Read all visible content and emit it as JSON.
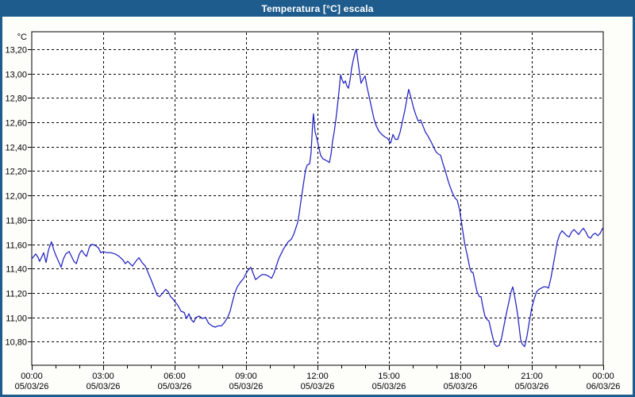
{
  "window": {
    "title": "Temperatura [°C] escala"
  },
  "colors": {
    "titlebar_bg": "#1E5C8E",
    "window_border": "#1E5C8E",
    "content_bg": "#FDFDFA",
    "plot_bg": "#FFFFFF",
    "grid": "#000000",
    "axis": "#000000",
    "line": "#2222C2",
    "title_text": "#FFFFFF",
    "label_text": "#000000"
  },
  "chart_data": {
    "type": "line",
    "title": "Temperatura [°C] escala",
    "unit_label": "°C",
    "legend_position": "none",
    "grid": "dashed",
    "x_axis": {
      "xlim_hours": [
        0,
        24
      ],
      "minor_tick_every_hours": 1,
      "major_tick_every_hours": 3,
      "ticks": [
        {
          "hour": 0,
          "time": "00:00",
          "date": "05/03/26"
        },
        {
          "hour": 3,
          "time": "03:00",
          "date": "05/03/26"
        },
        {
          "hour": 6,
          "time": "06:00",
          "date": "05/03/26"
        },
        {
          "hour": 9,
          "time": "09:00",
          "date": "05/03/26"
        },
        {
          "hour": 12,
          "time": "12:00",
          "date": "05/03/26"
        },
        {
          "hour": 15,
          "time": "15:00",
          "date": "05/03/26"
        },
        {
          "hour": 18,
          "time": "18:00",
          "date": "05/03/26"
        },
        {
          "hour": 21,
          "time": "21:00",
          "date": "05/03/26"
        },
        {
          "hour": 24,
          "time": "00:00",
          "date": "06/03/26"
        }
      ]
    },
    "y_axis": {
      "ylim": [
        10.6,
        13.34
      ],
      "tick_step": 0.2,
      "tick_values": [
        13.2,
        13.0,
        12.8,
        12.6,
        12.4,
        12.2,
        12.0,
        11.8,
        11.6,
        11.4,
        11.2,
        11.0,
        10.8
      ],
      "tick_labels": [
        "13,20",
        "13,00",
        "12,80",
        "12,60",
        "12,40",
        "12,20",
        "12,00",
        "11,80",
        "11,60",
        "11,40",
        "11,20",
        "11,00",
        "10,80"
      ]
    },
    "series": [
      {
        "name": "Temperatura",
        "unit": "°C",
        "points": [
          [
            0.0,
            11.48
          ],
          [
            0.17,
            11.52
          ],
          [
            0.27,
            11.49
          ],
          [
            0.33,
            11.46
          ],
          [
            0.43,
            11.5
          ],
          [
            0.5,
            11.53
          ],
          [
            0.6,
            11.45
          ],
          [
            0.7,
            11.55
          ],
          [
            0.77,
            11.59
          ],
          [
            0.83,
            11.62
          ],
          [
            0.93,
            11.55
          ],
          [
            1.03,
            11.5
          ],
          [
            1.17,
            11.44
          ],
          [
            1.23,
            11.41
          ],
          [
            1.33,
            11.48
          ],
          [
            1.43,
            11.52
          ],
          [
            1.57,
            11.54
          ],
          [
            1.67,
            11.5
          ],
          [
            1.77,
            11.46
          ],
          [
            1.87,
            11.44
          ],
          [
            2.0,
            11.52
          ],
          [
            2.1,
            11.55
          ],
          [
            2.2,
            11.52
          ],
          [
            2.3,
            11.5
          ],
          [
            2.43,
            11.58
          ],
          [
            2.53,
            11.6
          ],
          [
            2.67,
            11.59
          ],
          [
            2.8,
            11.57
          ],
          [
            2.9,
            11.53
          ],
          [
            3.0,
            11.54
          ],
          [
            3.17,
            11.53
          ],
          [
            3.33,
            11.53
          ],
          [
            3.5,
            11.52
          ],
          [
            3.67,
            11.5
          ],
          [
            3.83,
            11.47
          ],
          [
            3.93,
            11.44
          ],
          [
            4.03,
            11.46
          ],
          [
            4.13,
            11.44
          ],
          [
            4.23,
            11.42
          ],
          [
            4.37,
            11.46
          ],
          [
            4.5,
            11.49
          ],
          [
            4.63,
            11.45
          ],
          [
            4.77,
            11.42
          ],
          [
            4.9,
            11.36
          ],
          [
            5.03,
            11.3
          ],
          [
            5.17,
            11.23
          ],
          [
            5.27,
            11.18
          ],
          [
            5.37,
            11.17
          ],
          [
            5.5,
            11.2
          ],
          [
            5.63,
            11.23
          ],
          [
            5.73,
            11.21
          ],
          [
            5.83,
            11.17
          ],
          [
            5.93,
            11.15
          ],
          [
            6.0,
            11.13
          ],
          [
            6.13,
            11.1
          ],
          [
            6.27,
            11.05
          ],
          [
            6.4,
            11.04
          ],
          [
            6.5,
            10.99
          ],
          [
            6.6,
            11.03
          ],
          [
            6.7,
            10.98
          ],
          [
            6.8,
            10.96
          ],
          [
            6.9,
            11.0
          ],
          [
            7.03,
            11.01
          ],
          [
            7.17,
            10.99
          ],
          [
            7.3,
            11.0
          ],
          [
            7.43,
            10.95
          ],
          [
            7.57,
            10.93
          ],
          [
            7.7,
            10.92
          ],
          [
            7.83,
            10.93
          ],
          [
            7.97,
            10.93
          ],
          [
            8.1,
            10.96
          ],
          [
            8.23,
            11.0
          ],
          [
            8.33,
            11.05
          ],
          [
            8.43,
            11.13
          ],
          [
            8.53,
            11.2
          ],
          [
            8.63,
            11.25
          ],
          [
            8.77,
            11.29
          ],
          [
            8.9,
            11.32
          ],
          [
            9.0,
            11.36
          ],
          [
            9.1,
            11.39
          ],
          [
            9.2,
            11.41
          ],
          [
            9.3,
            11.36
          ],
          [
            9.4,
            11.31
          ],
          [
            9.53,
            11.33
          ],
          [
            9.67,
            11.35
          ],
          [
            9.8,
            11.35
          ],
          [
            9.93,
            11.34
          ],
          [
            10.07,
            11.32
          ],
          [
            10.17,
            11.36
          ],
          [
            10.27,
            11.42
          ],
          [
            10.37,
            11.48
          ],
          [
            10.47,
            11.52
          ],
          [
            10.57,
            11.56
          ],
          [
            10.67,
            11.59
          ],
          [
            10.77,
            11.62
          ],
          [
            10.9,
            11.64
          ],
          [
            11.0,
            11.68
          ],
          [
            11.07,
            11.72
          ],
          [
            11.17,
            11.78
          ],
          [
            11.23,
            11.85
          ],
          [
            11.3,
            11.95
          ],
          [
            11.37,
            12.04
          ],
          [
            11.43,
            12.12
          ],
          [
            11.5,
            12.21
          ],
          [
            11.57,
            12.25
          ],
          [
            11.67,
            12.26
          ],
          [
            11.73,
            12.35
          ],
          [
            11.8,
            12.6
          ],
          [
            11.83,
            12.67
          ],
          [
            11.9,
            12.52
          ],
          [
            11.97,
            12.47
          ],
          [
            12.07,
            12.38
          ],
          [
            12.13,
            12.33
          ],
          [
            12.23,
            12.3
          ],
          [
            12.33,
            12.29
          ],
          [
            12.43,
            12.28
          ],
          [
            12.5,
            12.27
          ],
          [
            12.57,
            12.34
          ],
          [
            12.63,
            12.44
          ],
          [
            12.7,
            12.52
          ],
          [
            12.77,
            12.62
          ],
          [
            12.83,
            12.72
          ],
          [
            12.9,
            12.85
          ],
          [
            12.97,
            12.99
          ],
          [
            13.03,
            12.95
          ],
          [
            13.1,
            12.92
          ],
          [
            13.17,
            12.94
          ],
          [
            13.23,
            12.9
          ],
          [
            13.3,
            12.88
          ],
          [
            13.37,
            12.95
          ],
          [
            13.43,
            13.04
          ],
          [
            13.5,
            13.11
          ],
          [
            13.57,
            13.17
          ],
          [
            13.63,
            13.2
          ],
          [
            13.7,
            13.1
          ],
          [
            13.77,
            13.0
          ],
          [
            13.83,
            12.92
          ],
          [
            13.93,
            12.96
          ],
          [
            14.0,
            12.98
          ],
          [
            14.07,
            12.9
          ],
          [
            14.17,
            12.81
          ],
          [
            14.27,
            12.72
          ],
          [
            14.37,
            12.63
          ],
          [
            14.47,
            12.57
          ],
          [
            14.57,
            12.53
          ],
          [
            14.7,
            12.5
          ],
          [
            14.83,
            12.48
          ],
          [
            14.93,
            12.47
          ],
          [
            15.07,
            12.43
          ],
          [
            15.17,
            12.5
          ],
          [
            15.27,
            12.46
          ],
          [
            15.37,
            12.46
          ],
          [
            15.47,
            12.52
          ],
          [
            15.57,
            12.61
          ],
          [
            15.67,
            12.7
          ],
          [
            15.77,
            12.81
          ],
          [
            15.83,
            12.87
          ],
          [
            15.93,
            12.8
          ],
          [
            16.03,
            12.72
          ],
          [
            16.13,
            12.66
          ],
          [
            16.23,
            12.61
          ],
          [
            16.33,
            12.62
          ],
          [
            16.43,
            12.57
          ],
          [
            16.53,
            12.52
          ],
          [
            16.63,
            12.49
          ],
          [
            16.77,
            12.44
          ],
          [
            16.87,
            12.4
          ],
          [
            16.97,
            12.36
          ],
          [
            17.07,
            12.34
          ],
          [
            17.17,
            12.33
          ],
          [
            17.27,
            12.26
          ],
          [
            17.37,
            12.2
          ],
          [
            17.47,
            12.13
          ],
          [
            17.57,
            12.07
          ],
          [
            17.67,
            12.02
          ],
          [
            17.77,
            11.98
          ],
          [
            17.87,
            11.96
          ],
          [
            17.97,
            11.88
          ],
          [
            18.03,
            11.8
          ],
          [
            18.1,
            11.71
          ],
          [
            18.17,
            11.62
          ],
          [
            18.23,
            11.56
          ],
          [
            18.3,
            11.5
          ],
          [
            18.4,
            11.4
          ],
          [
            18.47,
            11.37
          ],
          [
            18.53,
            11.37
          ],
          [
            18.6,
            11.3
          ],
          [
            18.7,
            11.21
          ],
          [
            18.8,
            11.17
          ],
          [
            18.87,
            11.17
          ],
          [
            18.93,
            11.1
          ],
          [
            19.03,
            11.01
          ],
          [
            19.13,
            10.98
          ],
          [
            19.2,
            10.97
          ],
          [
            19.27,
            10.91
          ],
          [
            19.33,
            10.86
          ],
          [
            19.43,
            10.78
          ],
          [
            19.53,
            10.76
          ],
          [
            19.63,
            10.77
          ],
          [
            19.73,
            10.83
          ],
          [
            19.83,
            10.93
          ],
          [
            19.93,
            11.03
          ],
          [
            20.03,
            11.12
          ],
          [
            20.13,
            11.21
          ],
          [
            20.2,
            11.25
          ],
          [
            20.3,
            11.15
          ],
          [
            20.4,
            11.03
          ],
          [
            20.47,
            10.92
          ],
          [
            20.53,
            10.82
          ],
          [
            20.6,
            10.78
          ],
          [
            20.7,
            10.76
          ],
          [
            20.8,
            10.85
          ],
          [
            20.9,
            10.97
          ],
          [
            21.0,
            11.08
          ],
          [
            21.1,
            11.15
          ],
          [
            21.2,
            11.21
          ],
          [
            21.3,
            11.23
          ],
          [
            21.4,
            11.24
          ],
          [
            21.5,
            11.25
          ],
          [
            21.6,
            11.25
          ],
          [
            21.7,
            11.24
          ],
          [
            21.8,
            11.32
          ],
          [
            21.9,
            11.43
          ],
          [
            22.0,
            11.54
          ],
          [
            22.07,
            11.62
          ],
          [
            22.17,
            11.68
          ],
          [
            22.27,
            11.71
          ],
          [
            22.37,
            11.69
          ],
          [
            22.47,
            11.67
          ],
          [
            22.57,
            11.66
          ],
          [
            22.67,
            11.7
          ],
          [
            22.77,
            11.72
          ],
          [
            22.87,
            11.7
          ],
          [
            22.97,
            11.68
          ],
          [
            23.07,
            11.71
          ],
          [
            23.17,
            11.73
          ],
          [
            23.27,
            11.7
          ],
          [
            23.37,
            11.66
          ],
          [
            23.47,
            11.65
          ],
          [
            23.57,
            11.68
          ],
          [
            23.67,
            11.69
          ],
          [
            23.77,
            11.67
          ],
          [
            23.87,
            11.69
          ],
          [
            23.97,
            11.73
          ]
        ]
      }
    ]
  }
}
